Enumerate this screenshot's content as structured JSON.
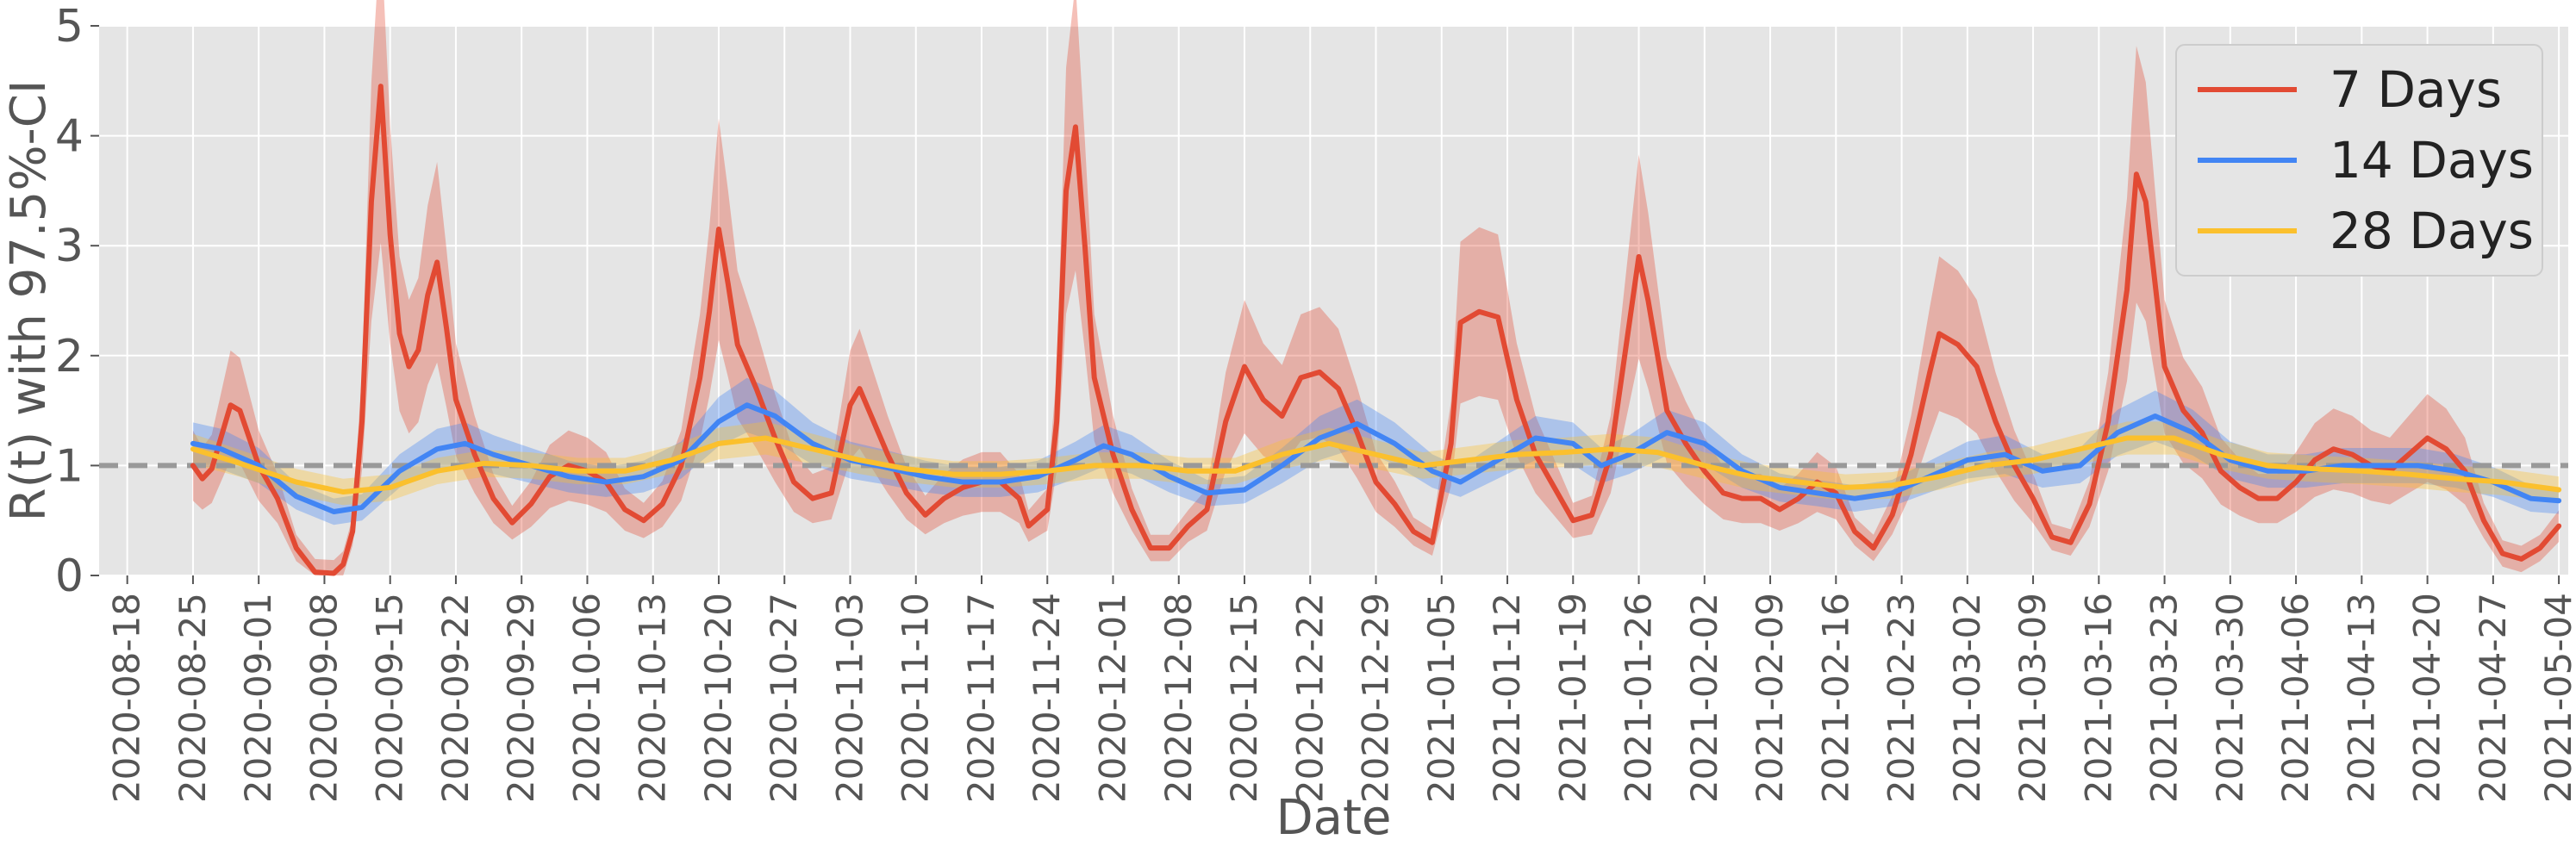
{
  "chart_data": {
    "type": "line",
    "xlabel": "Date",
    "ylabel": "R(t) with 97.5%-CI",
    "ylim": [
      0,
      5
    ],
    "yticks": [
      "0",
      "1",
      "2",
      "3",
      "4",
      "5"
    ],
    "xlim": [
      "2020-08-15",
      "2021-05-05"
    ],
    "xticks": [
      "2020-08-18",
      "2020-08-25",
      "2020-09-01",
      "2020-09-08",
      "2020-09-15",
      "2020-09-22",
      "2020-09-29",
      "2020-10-06",
      "2020-10-13",
      "2020-10-20",
      "2020-10-27",
      "2020-11-03",
      "2020-11-10",
      "2020-11-17",
      "2020-11-24",
      "2020-12-01",
      "2020-12-08",
      "2020-12-15",
      "2020-12-22",
      "2020-12-29",
      "2021-01-05",
      "2021-01-12",
      "2021-01-19",
      "2021-01-26",
      "2021-02-02",
      "2021-02-09",
      "2021-02-16",
      "2021-02-23",
      "2021-03-02",
      "2021-03-09",
      "2021-03-16",
      "2021-03-23",
      "2021-03-30",
      "2021-04-06",
      "2021-04-13",
      "2021-04-20",
      "2021-04-27",
      "2021-05-04"
    ],
    "grid": true,
    "reference_line": {
      "y": 1,
      "style": "dashed",
      "color": "#999999"
    },
    "legend_position": "top-right",
    "series": [
      {
        "name": "7 Days",
        "color": "#e24a33",
        "points": [
          [
            "2020-08-25",
            1.0
          ],
          [
            "2020-08-26",
            0.88
          ],
          [
            "2020-08-27",
            0.97
          ],
          [
            "2020-08-29",
            1.55
          ],
          [
            "2020-08-30",
            1.5
          ],
          [
            "2020-09-01",
            1.0
          ],
          [
            "2020-09-03",
            0.7
          ],
          [
            "2020-09-05",
            0.25
          ],
          [
            "2020-09-07",
            0.03
          ],
          [
            "2020-09-09",
            0.02
          ],
          [
            "2020-09-10",
            0.1
          ],
          [
            "2020-09-11",
            0.4
          ],
          [
            "2020-09-12",
            1.4
          ],
          [
            "2020-09-13",
            3.4
          ],
          [
            "2020-09-14",
            4.45
          ],
          [
            "2020-09-15",
            3.1
          ],
          [
            "2020-09-16",
            2.2
          ],
          [
            "2020-09-17",
            1.9
          ],
          [
            "2020-09-18",
            2.05
          ],
          [
            "2020-09-19",
            2.55
          ],
          [
            "2020-09-20",
            2.85
          ],
          [
            "2020-09-21",
            2.25
          ],
          [
            "2020-09-22",
            1.6
          ],
          [
            "2020-09-24",
            1.1
          ],
          [
            "2020-09-26",
            0.7
          ],
          [
            "2020-09-28",
            0.48
          ],
          [
            "2020-09-30",
            0.65
          ],
          [
            "2020-10-02",
            0.9
          ],
          [
            "2020-10-04",
            1.0
          ],
          [
            "2020-10-06",
            0.95
          ],
          [
            "2020-10-08",
            0.85
          ],
          [
            "2020-10-10",
            0.6
          ],
          [
            "2020-10-12",
            0.5
          ],
          [
            "2020-10-14",
            0.65
          ],
          [
            "2020-10-16",
            1.0
          ],
          [
            "2020-10-18",
            1.8
          ],
          [
            "2020-10-19",
            2.4
          ],
          [
            "2020-10-20",
            3.15
          ],
          [
            "2020-10-21",
            2.65
          ],
          [
            "2020-10-22",
            2.1
          ],
          [
            "2020-10-24",
            1.7
          ],
          [
            "2020-10-26",
            1.25
          ],
          [
            "2020-10-28",
            0.85
          ],
          [
            "2020-10-30",
            0.7
          ],
          [
            "2020-11-01",
            0.75
          ],
          [
            "2020-11-03",
            1.55
          ],
          [
            "2020-11-04",
            1.7
          ],
          [
            "2020-11-05",
            1.5
          ],
          [
            "2020-11-07",
            1.1
          ],
          [
            "2020-11-09",
            0.75
          ],
          [
            "2020-11-11",
            0.55
          ],
          [
            "2020-11-13",
            0.7
          ],
          [
            "2020-11-15",
            0.8
          ],
          [
            "2020-11-17",
            0.85
          ],
          [
            "2020-11-19",
            0.85
          ],
          [
            "2020-11-21",
            0.7
          ],
          [
            "2020-11-22",
            0.45
          ],
          [
            "2020-11-24",
            0.6
          ],
          [
            "2020-11-25",
            1.4
          ],
          [
            "2020-11-26",
            3.5
          ],
          [
            "2020-11-27",
            4.08
          ],
          [
            "2020-11-28",
            3.0
          ],
          [
            "2020-11-29",
            1.8
          ],
          [
            "2020-12-01",
            1.1
          ],
          [
            "2020-12-03",
            0.6
          ],
          [
            "2020-12-05",
            0.25
          ],
          [
            "2020-12-07",
            0.25
          ],
          [
            "2020-12-09",
            0.45
          ],
          [
            "2020-12-11",
            0.6
          ],
          [
            "2020-12-13",
            1.4
          ],
          [
            "2020-12-15",
            1.9
          ],
          [
            "2020-12-17",
            1.6
          ],
          [
            "2020-12-19",
            1.45
          ],
          [
            "2020-12-21",
            1.8
          ],
          [
            "2020-12-23",
            1.85
          ],
          [
            "2020-12-25",
            1.7
          ],
          [
            "2020-12-27",
            1.3
          ],
          [
            "2020-12-29",
            0.85
          ],
          [
            "2020-12-31",
            0.65
          ],
          [
            "2021-01-02",
            0.4
          ],
          [
            "2021-01-04",
            0.3
          ],
          [
            "2021-01-06",
            1.2
          ],
          [
            "2021-01-07",
            2.3
          ],
          [
            "2021-01-09",
            2.4
          ],
          [
            "2021-01-11",
            2.35
          ],
          [
            "2021-01-13",
            1.6
          ],
          [
            "2021-01-15",
            1.1
          ],
          [
            "2021-01-17",
            0.8
          ],
          [
            "2021-01-19",
            0.5
          ],
          [
            "2021-01-21",
            0.55
          ],
          [
            "2021-01-23",
            1.1
          ],
          [
            "2021-01-25",
            2.3
          ],
          [
            "2021-01-26",
            2.9
          ],
          [
            "2021-01-27",
            2.5
          ],
          [
            "2021-01-29",
            1.5
          ],
          [
            "2021-01-31",
            1.2
          ],
          [
            "2021-02-02",
            0.95
          ],
          [
            "2021-02-04",
            0.75
          ],
          [
            "2021-02-06",
            0.7
          ],
          [
            "2021-02-08",
            0.7
          ],
          [
            "2021-02-10",
            0.6
          ],
          [
            "2021-02-12",
            0.7
          ],
          [
            "2021-02-14",
            0.85
          ],
          [
            "2021-02-16",
            0.75
          ],
          [
            "2021-02-18",
            0.4
          ],
          [
            "2021-02-20",
            0.25
          ],
          [
            "2021-02-22",
            0.55
          ],
          [
            "2021-02-24",
            1.1
          ],
          [
            "2021-02-26",
            1.85
          ],
          [
            "2021-02-27",
            2.2
          ],
          [
            "2021-03-01",
            2.1
          ],
          [
            "2021-03-03",
            1.9
          ],
          [
            "2021-03-05",
            1.4
          ],
          [
            "2021-03-07",
            1.0
          ],
          [
            "2021-03-09",
            0.7
          ],
          [
            "2021-03-11",
            0.35
          ],
          [
            "2021-03-13",
            0.3
          ],
          [
            "2021-03-15",
            0.65
          ],
          [
            "2021-03-17",
            1.4
          ],
          [
            "2021-03-19",
            2.6
          ],
          [
            "2021-03-20",
            3.65
          ],
          [
            "2021-03-21",
            3.4
          ],
          [
            "2021-03-23",
            1.9
          ],
          [
            "2021-03-25",
            1.5
          ],
          [
            "2021-03-27",
            1.3
          ],
          [
            "2021-03-29",
            0.95
          ],
          [
            "2021-03-31",
            0.8
          ],
          [
            "2021-04-02",
            0.7
          ],
          [
            "2021-04-04",
            0.7
          ],
          [
            "2021-04-06",
            0.85
          ],
          [
            "2021-04-08",
            1.05
          ],
          [
            "2021-04-10",
            1.15
          ],
          [
            "2021-04-12",
            1.1
          ],
          [
            "2021-04-14",
            1.0
          ],
          [
            "2021-04-16",
            0.95
          ],
          [
            "2021-04-18",
            1.1
          ],
          [
            "2021-04-20",
            1.25
          ],
          [
            "2021-04-22",
            1.15
          ],
          [
            "2021-04-24",
            0.95
          ],
          [
            "2021-04-26",
            0.5
          ],
          [
            "2021-04-28",
            0.2
          ],
          [
            "2021-04-30",
            0.15
          ],
          [
            "2021-05-02",
            0.25
          ],
          [
            "2021-05-04",
            0.45
          ]
        ]
      },
      {
        "name": "14 Days",
        "color": "#4285f4",
        "points": [
          [
            "2020-08-25",
            1.2
          ],
          [
            "2020-08-28",
            1.15
          ],
          [
            "2020-09-01",
            1.0
          ],
          [
            "2020-09-05",
            0.72
          ],
          [
            "2020-09-09",
            0.58
          ],
          [
            "2020-09-12",
            0.62
          ],
          [
            "2020-09-16",
            0.95
          ],
          [
            "2020-09-20",
            1.15
          ],
          [
            "2020-09-23",
            1.2
          ],
          [
            "2020-09-26",
            1.1
          ],
          [
            "2020-09-30",
            1.0
          ],
          [
            "2020-10-04",
            0.9
          ],
          [
            "2020-10-08",
            0.85
          ],
          [
            "2020-10-12",
            0.9
          ],
          [
            "2020-10-16",
            1.05
          ],
          [
            "2020-10-20",
            1.4
          ],
          [
            "2020-10-23",
            1.55
          ],
          [
            "2020-10-26",
            1.45
          ],
          [
            "2020-10-30",
            1.2
          ],
          [
            "2020-11-03",
            1.05
          ],
          [
            "2020-11-07",
            0.98
          ],
          [
            "2020-11-11",
            0.9
          ],
          [
            "2020-11-15",
            0.85
          ],
          [
            "2020-11-19",
            0.85
          ],
          [
            "2020-11-23",
            0.9
          ],
          [
            "2020-11-27",
            1.05
          ],
          [
            "2020-11-30",
            1.18
          ],
          [
            "2020-12-03",
            1.1
          ],
          [
            "2020-12-07",
            0.9
          ],
          [
            "2020-12-11",
            0.75
          ],
          [
            "2020-12-15",
            0.78
          ],
          [
            "2020-12-19",
            1.0
          ],
          [
            "2020-12-23",
            1.25
          ],
          [
            "2020-12-27",
            1.38
          ],
          [
            "2020-12-31",
            1.2
          ],
          [
            "2021-01-04",
            0.95
          ],
          [
            "2021-01-07",
            0.85
          ],
          [
            "2021-01-11",
            1.05
          ],
          [
            "2021-01-15",
            1.25
          ],
          [
            "2021-01-19",
            1.2
          ],
          [
            "2021-01-22",
            1.0
          ],
          [
            "2021-01-25",
            1.1
          ],
          [
            "2021-01-29",
            1.3
          ],
          [
            "2021-02-02",
            1.2
          ],
          [
            "2021-02-06",
            0.95
          ],
          [
            "2021-02-10",
            0.8
          ],
          [
            "2021-02-14",
            0.75
          ],
          [
            "2021-02-18",
            0.7
          ],
          [
            "2021-02-22",
            0.75
          ],
          [
            "2021-02-26",
            0.9
          ],
          [
            "2021-03-02",
            1.05
          ],
          [
            "2021-03-06",
            1.1
          ],
          [
            "2021-03-10",
            0.95
          ],
          [
            "2021-03-14",
            1.0
          ],
          [
            "2021-03-18",
            1.3
          ],
          [
            "2021-03-22",
            1.45
          ],
          [
            "2021-03-26",
            1.3
          ],
          [
            "2021-03-30",
            1.05
          ],
          [
            "2021-04-03",
            0.95
          ],
          [
            "2021-04-07",
            0.95
          ],
          [
            "2021-04-11",
            1.0
          ],
          [
            "2021-04-15",
            1.0
          ],
          [
            "2021-04-19",
            1.0
          ],
          [
            "2021-04-23",
            0.95
          ],
          [
            "2021-04-27",
            0.85
          ],
          [
            "2021-05-01",
            0.7
          ],
          [
            "2021-05-04",
            0.68
          ]
        ]
      },
      {
        "name": "28 Days",
        "color": "#fbc02d",
        "points": [
          [
            "2020-08-25",
            1.15
          ],
          [
            "2020-08-30",
            1.02
          ],
          [
            "2020-09-05",
            0.85
          ],
          [
            "2020-09-10",
            0.76
          ],
          [
            "2020-09-15",
            0.8
          ],
          [
            "2020-09-20",
            0.95
          ],
          [
            "2020-09-25",
            1.02
          ],
          [
            "2020-09-30",
            1.0
          ],
          [
            "2020-10-05",
            0.95
          ],
          [
            "2020-10-10",
            0.95
          ],
          [
            "2020-10-15",
            1.05
          ],
          [
            "2020-10-20",
            1.2
          ],
          [
            "2020-10-25",
            1.25
          ],
          [
            "2020-10-30",
            1.15
          ],
          [
            "2020-11-04",
            1.05
          ],
          [
            "2020-11-09",
            0.97
          ],
          [
            "2020-11-14",
            0.92
          ],
          [
            "2020-11-19",
            0.92
          ],
          [
            "2020-11-24",
            0.95
          ],
          [
            "2020-11-29",
            1.0
          ],
          [
            "2020-12-04",
            1.0
          ],
          [
            "2020-12-09",
            0.95
          ],
          [
            "2020-12-14",
            0.95
          ],
          [
            "2020-12-19",
            1.1
          ],
          [
            "2020-12-24",
            1.2
          ],
          [
            "2020-12-29",
            1.1
          ],
          [
            "2021-01-03",
            1.0
          ],
          [
            "2021-01-08",
            1.05
          ],
          [
            "2021-01-13",
            1.1
          ],
          [
            "2021-01-18",
            1.12
          ],
          [
            "2021-01-23",
            1.15
          ],
          [
            "2021-01-28",
            1.12
          ],
          [
            "2021-02-02",
            1.0
          ],
          [
            "2021-02-07",
            0.9
          ],
          [
            "2021-02-12",
            0.85
          ],
          [
            "2021-02-17",
            0.8
          ],
          [
            "2021-02-22",
            0.82
          ],
          [
            "2021-02-27",
            0.9
          ],
          [
            "2021-03-04",
            1.0
          ],
          [
            "2021-03-09",
            1.05
          ],
          [
            "2021-03-14",
            1.15
          ],
          [
            "2021-03-19",
            1.25
          ],
          [
            "2021-03-24",
            1.25
          ],
          [
            "2021-03-29",
            1.1
          ],
          [
            "2021-04-03",
            1.0
          ],
          [
            "2021-04-08",
            0.97
          ],
          [
            "2021-04-13",
            0.95
          ],
          [
            "2021-04-18",
            0.92
          ],
          [
            "2021-04-23",
            0.88
          ],
          [
            "2021-04-28",
            0.85
          ],
          [
            "2021-05-04",
            0.78
          ]
        ]
      }
    ]
  }
}
